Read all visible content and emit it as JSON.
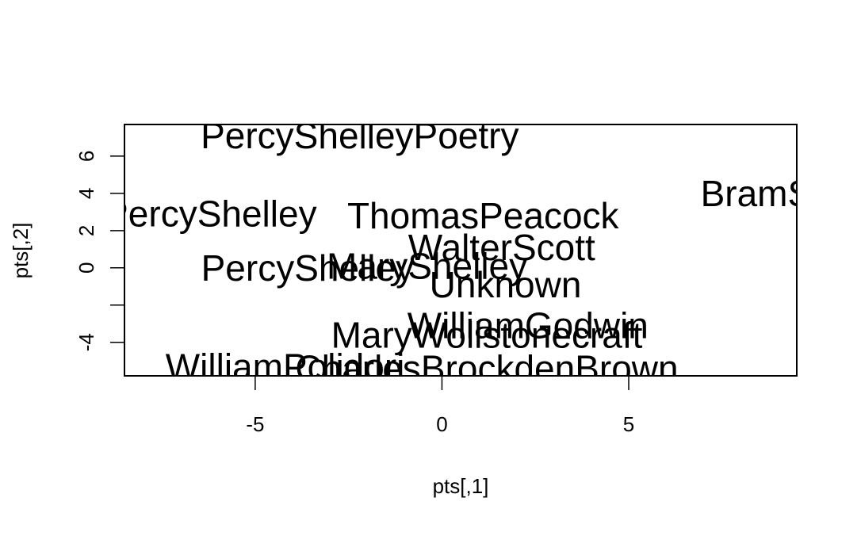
{
  "chart_data": {
    "type": "scatter",
    "title": "",
    "xlabel": "pts[,1]",
    "ylabel": "pts[,2]",
    "xlim": [
      -8.5,
      9.5
    ],
    "ylim": [
      -5.8,
      7.7
    ],
    "grid": false,
    "x_ticks": [
      -5,
      0,
      5
    ],
    "x_tick_labels": [
      "-5",
      "0",
      "5"
    ],
    "y_ticks": [
      -4,
      -2,
      0,
      2,
      4,
      6
    ],
    "y_tick_labels": [
      "-4",
      "",
      "0",
      "2",
      "4",
      "6"
    ],
    "points": [
      {
        "label": "PercyShelleyPoetry",
        "x": -2.2,
        "y": 7.1
      },
      {
        "label": "BramStoker",
        "x": 9.5,
        "y": 4.0
      },
      {
        "label": "PercyShelley",
        "x": -6.2,
        "y": 2.9
      },
      {
        "label": "ThomasPeacock",
        "x": 1.1,
        "y": 2.8
      },
      {
        "label": "WalterScott",
        "x": 1.6,
        "y": 1.1
      },
      {
        "label": "PercyShelley",
        "x": -3.6,
        "y": 0.0
      },
      {
        "label": "MaryShelley",
        "x": -0.4,
        "y": 0.1
      },
      {
        "label": "Unknown",
        "x": 1.7,
        "y": -0.9
      },
      {
        "label": "WilliamGodwin",
        "x": 2.3,
        "y": -3.1
      },
      {
        "label": "MaryWollstonecraft",
        "x": 1.2,
        "y": -3.6
      },
      {
        "label": "WilliamPolidori",
        "x": -4.2,
        "y": -5.3
      },
      {
        "label": "CharlesBrockdenBrown",
        "x": 1.2,
        "y": -5.4
      }
    ]
  }
}
